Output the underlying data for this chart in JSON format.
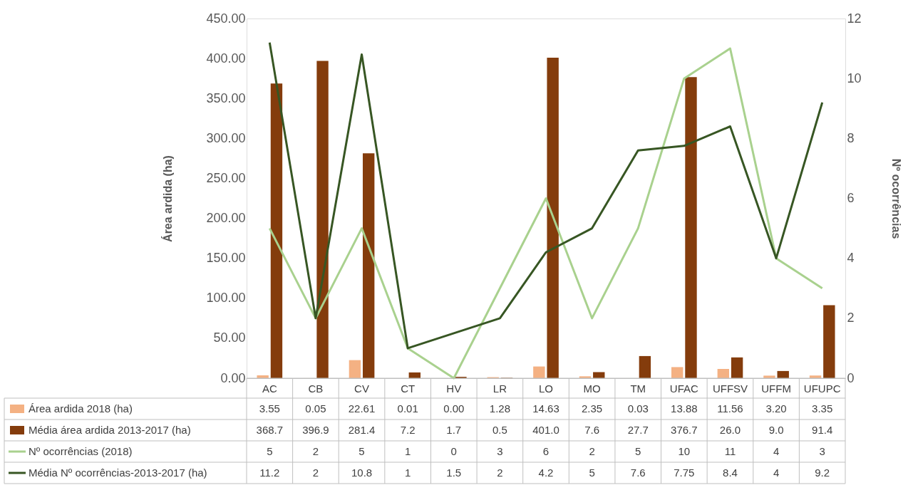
{
  "chart_data": {
    "type": "bar",
    "ylabel": "Área ardida (ha)",
    "y2label": "Nº ocorrências",
    "categories": [
      "AC",
      "CB",
      "CV",
      "CT",
      "HV",
      "LR",
      "LO",
      "MO",
      "TM",
      "UFAC",
      "UFFSV",
      "UFFM",
      "UFUPC"
    ],
    "series": [
      {
        "name": "Área ardida 2018 (ha)",
        "color": "#f4b183",
        "values": [
          3.55,
          0.05,
          22.61,
          0.01,
          0.0,
          1.28,
          14.63,
          2.35,
          0.03,
          13.88,
          11.56,
          3.2,
          3.35
        ],
        "value_labels": [
          "3.55",
          "0.05",
          "22.61",
          "0.01",
          "0.00",
          "1.28",
          "14.63",
          "2.35",
          "0.03",
          "13.88",
          "11.56",
          "3.20",
          "3.35"
        ]
      },
      {
        "name": "Média área ardida 2013-2017 (ha)",
        "color": "#843c0c",
        "values": [
          368.7,
          396.9,
          281.4,
          7.2,
          1.7,
          0.5,
          401.0,
          7.6,
          27.7,
          376.7,
          26.0,
          9.0,
          91.4
        ],
        "value_labels": [
          "368.7",
          "396.9",
          "281.4",
          "7.2",
          "1.7",
          "0.5",
          "401.0",
          "7.6",
          "27.7",
          "376.7",
          "26.0",
          "9.0",
          "91.4"
        ]
      },
      {
        "name": "Nº ocorrências (2018)",
        "type": "line",
        "axis": "y2",
        "color": "#a9d18e",
        "values": [
          5,
          2,
          5,
          1,
          0,
          3,
          6,
          2,
          5,
          10,
          11,
          4,
          3
        ],
        "value_labels": [
          "5",
          "2",
          "5",
          "1",
          "0",
          "3",
          "6",
          "2",
          "5",
          "10",
          "11",
          "4",
          "3"
        ]
      },
      {
        "name": "Média Nº ocorrências-2013-2017 (ha)",
        "type": "line",
        "axis": "y2",
        "color": "#375623",
        "values": [
          11.2,
          2,
          10.8,
          1,
          1.5,
          2,
          4.2,
          5,
          7.6,
          7.75,
          8.4,
          4,
          9.2
        ],
        "value_labels": [
          "11.2",
          "2",
          "10.8",
          "1",
          "1.5",
          "2",
          "4.2",
          "5",
          "7.6",
          "7.75",
          "8.4",
          "4",
          "9.2"
        ]
      }
    ],
    "ylim": [
      0,
      450
    ],
    "yticks": [
      {
        "value": 0,
        "label": "0.00"
      },
      {
        "value": 50,
        "label": "50.00"
      },
      {
        "value": 100,
        "label": "100.00"
      },
      {
        "value": 150,
        "label": "150.00"
      },
      {
        "value": 200,
        "label": "200.00"
      },
      {
        "value": 250,
        "label": "250.00"
      },
      {
        "value": 300,
        "label": "300.00"
      },
      {
        "value": 350,
        "label": "350.00"
      },
      {
        "value": 400,
        "label": "400.00"
      },
      {
        "value": 450,
        "label": "450.00"
      }
    ],
    "y2lim": [
      0,
      12
    ],
    "y2ticks": [
      0,
      2,
      4,
      6,
      8,
      10,
      12
    ],
    "grid": false,
    "legend": "bottom",
    "line_style": "solid",
    "marker": "none"
  }
}
